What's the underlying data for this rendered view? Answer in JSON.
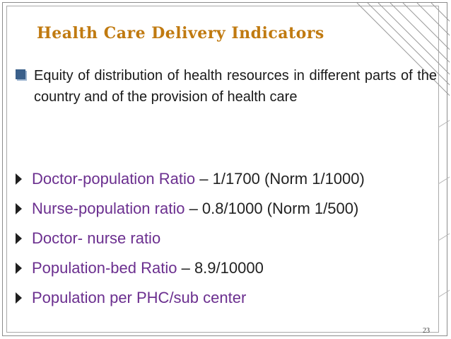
{
  "slide": {
    "title": "Health Care Delivery Indicators",
    "intro": {
      "icon": "square-bullet-icon",
      "text": "Equity of distribution of health resources in different parts of the country and of the provision of health care"
    },
    "items": [
      {
        "label": "Doctor-population Ratio",
        "value": " – 1/1700 (Norm 1/1000)"
      },
      {
        "label": "Nurse-population ratio",
        "value": " – 0.8/1000 (Norm 1/500)"
      },
      {
        "label": "Doctor- nurse ratio",
        "value": ""
      },
      {
        "label": "Population-bed Ratio",
        "value": " – 8.9/10000"
      },
      {
        "label": "Population per PHC/sub center",
        "value": ""
      }
    ],
    "slide_number": "23"
  },
  "colors": {
    "title": "#c07a10",
    "label": "#6b2f8f",
    "text": "#222222",
    "frame": "#8c8c8c"
  }
}
